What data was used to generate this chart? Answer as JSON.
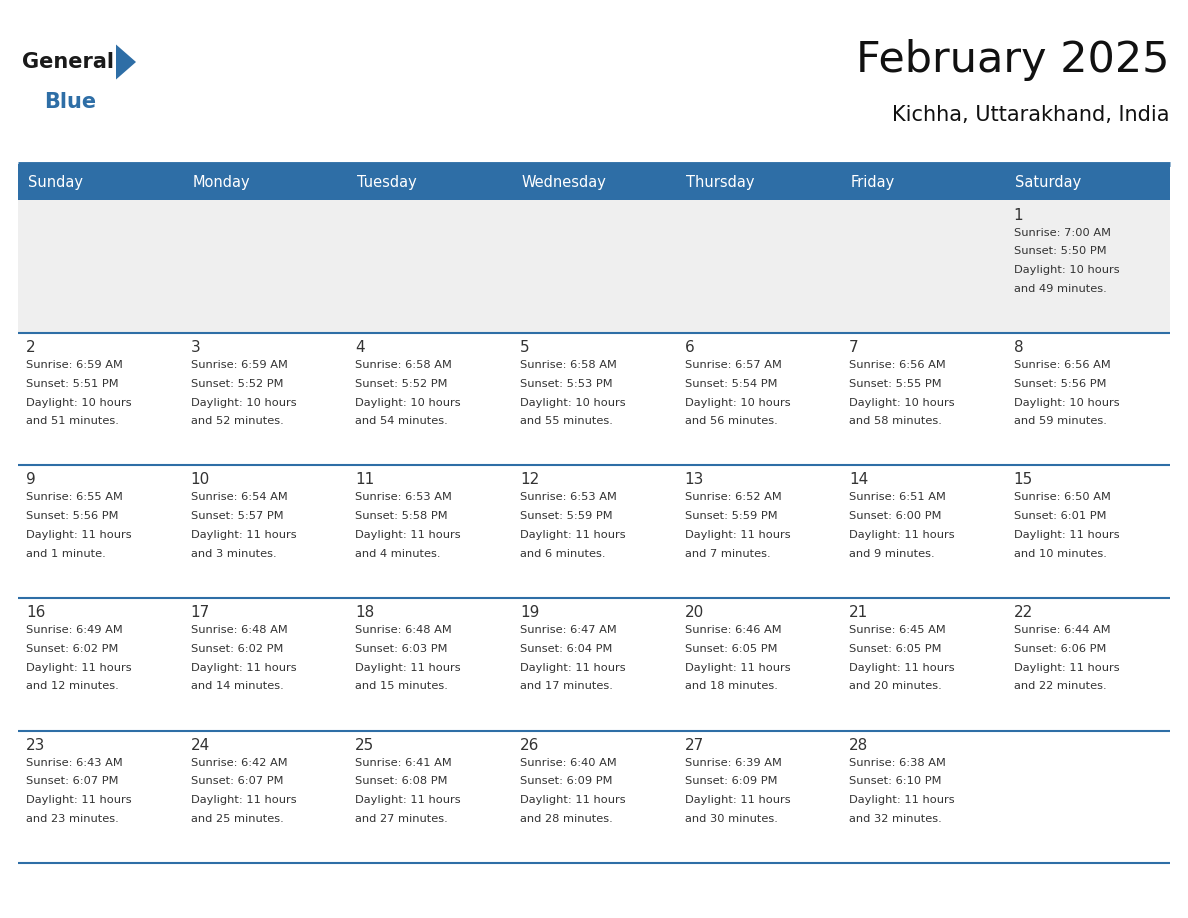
{
  "title": "February 2025",
  "subtitle": "Kichha, Uttarakhand, India",
  "header_bg": "#2E6EA6",
  "header_text": "#FFFFFF",
  "cell_bg_gray": "#EFEFEF",
  "cell_bg_white": "#FFFFFF",
  "border_color": "#2E6EA6",
  "separator_color": "#2E6EA6",
  "day_names": [
    "Sunday",
    "Monday",
    "Tuesday",
    "Wednesday",
    "Thursday",
    "Friday",
    "Saturday"
  ],
  "text_color": "#333333",
  "day_number_color": "#333333",
  "logo_general_color": "#1a1a1a",
  "logo_blue_color": "#2E6EA6",
  "logo_triangle_color": "#2E6EA6",
  "calendar_data": [
    [
      {
        "day": null,
        "info": null
      },
      {
        "day": null,
        "info": null
      },
      {
        "day": null,
        "info": null
      },
      {
        "day": null,
        "info": null
      },
      {
        "day": null,
        "info": null
      },
      {
        "day": null,
        "info": null
      },
      {
        "day": 1,
        "info": "Sunrise: 7:00 AM\nSunset: 5:50 PM\nDaylight: 10 hours\nand 49 minutes."
      }
    ],
    [
      {
        "day": 2,
        "info": "Sunrise: 6:59 AM\nSunset: 5:51 PM\nDaylight: 10 hours\nand 51 minutes."
      },
      {
        "day": 3,
        "info": "Sunrise: 6:59 AM\nSunset: 5:52 PM\nDaylight: 10 hours\nand 52 minutes."
      },
      {
        "day": 4,
        "info": "Sunrise: 6:58 AM\nSunset: 5:52 PM\nDaylight: 10 hours\nand 54 minutes."
      },
      {
        "day": 5,
        "info": "Sunrise: 6:58 AM\nSunset: 5:53 PM\nDaylight: 10 hours\nand 55 minutes."
      },
      {
        "day": 6,
        "info": "Sunrise: 6:57 AM\nSunset: 5:54 PM\nDaylight: 10 hours\nand 56 minutes."
      },
      {
        "day": 7,
        "info": "Sunrise: 6:56 AM\nSunset: 5:55 PM\nDaylight: 10 hours\nand 58 minutes."
      },
      {
        "day": 8,
        "info": "Sunrise: 6:56 AM\nSunset: 5:56 PM\nDaylight: 10 hours\nand 59 minutes."
      }
    ],
    [
      {
        "day": 9,
        "info": "Sunrise: 6:55 AM\nSunset: 5:56 PM\nDaylight: 11 hours\nand 1 minute."
      },
      {
        "day": 10,
        "info": "Sunrise: 6:54 AM\nSunset: 5:57 PM\nDaylight: 11 hours\nand 3 minutes."
      },
      {
        "day": 11,
        "info": "Sunrise: 6:53 AM\nSunset: 5:58 PM\nDaylight: 11 hours\nand 4 minutes."
      },
      {
        "day": 12,
        "info": "Sunrise: 6:53 AM\nSunset: 5:59 PM\nDaylight: 11 hours\nand 6 minutes."
      },
      {
        "day": 13,
        "info": "Sunrise: 6:52 AM\nSunset: 5:59 PM\nDaylight: 11 hours\nand 7 minutes."
      },
      {
        "day": 14,
        "info": "Sunrise: 6:51 AM\nSunset: 6:00 PM\nDaylight: 11 hours\nand 9 minutes."
      },
      {
        "day": 15,
        "info": "Sunrise: 6:50 AM\nSunset: 6:01 PM\nDaylight: 11 hours\nand 10 minutes."
      }
    ],
    [
      {
        "day": 16,
        "info": "Sunrise: 6:49 AM\nSunset: 6:02 PM\nDaylight: 11 hours\nand 12 minutes."
      },
      {
        "day": 17,
        "info": "Sunrise: 6:48 AM\nSunset: 6:02 PM\nDaylight: 11 hours\nand 14 minutes."
      },
      {
        "day": 18,
        "info": "Sunrise: 6:48 AM\nSunset: 6:03 PM\nDaylight: 11 hours\nand 15 minutes."
      },
      {
        "day": 19,
        "info": "Sunrise: 6:47 AM\nSunset: 6:04 PM\nDaylight: 11 hours\nand 17 minutes."
      },
      {
        "day": 20,
        "info": "Sunrise: 6:46 AM\nSunset: 6:05 PM\nDaylight: 11 hours\nand 18 minutes."
      },
      {
        "day": 21,
        "info": "Sunrise: 6:45 AM\nSunset: 6:05 PM\nDaylight: 11 hours\nand 20 minutes."
      },
      {
        "day": 22,
        "info": "Sunrise: 6:44 AM\nSunset: 6:06 PM\nDaylight: 11 hours\nand 22 minutes."
      }
    ],
    [
      {
        "day": 23,
        "info": "Sunrise: 6:43 AM\nSunset: 6:07 PM\nDaylight: 11 hours\nand 23 minutes."
      },
      {
        "day": 24,
        "info": "Sunrise: 6:42 AM\nSunset: 6:07 PM\nDaylight: 11 hours\nand 25 minutes."
      },
      {
        "day": 25,
        "info": "Sunrise: 6:41 AM\nSunset: 6:08 PM\nDaylight: 11 hours\nand 27 minutes."
      },
      {
        "day": 26,
        "info": "Sunrise: 6:40 AM\nSunset: 6:09 PM\nDaylight: 11 hours\nand 28 minutes."
      },
      {
        "day": 27,
        "info": "Sunrise: 6:39 AM\nSunset: 6:09 PM\nDaylight: 11 hours\nand 30 minutes."
      },
      {
        "day": 28,
        "info": "Sunrise: 6:38 AM\nSunset: 6:10 PM\nDaylight: 11 hours\nand 32 minutes."
      },
      {
        "day": null,
        "info": null
      }
    ]
  ]
}
